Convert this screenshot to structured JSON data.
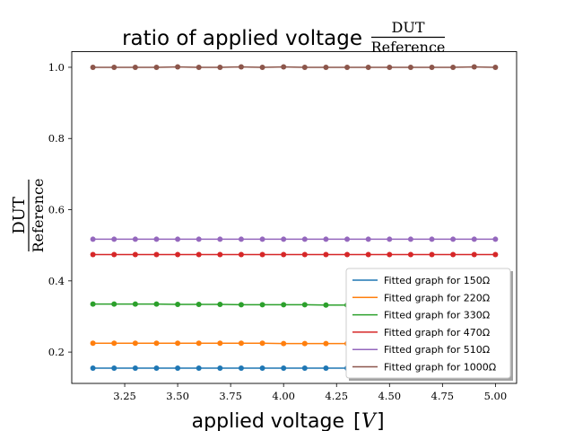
{
  "chart_data": {
    "type": "line",
    "title": "ratio of applied voltage",
    "title_fraction": {
      "numerator": "DUT",
      "denominator": "Reference"
    },
    "xlabel": "applied voltage",
    "xlabel_unit": "V",
    "ylabel_fraction": {
      "numerator": "DUT",
      "denominator": "Reference"
    },
    "xlim": [
      3.0,
      5.1
    ],
    "ylim": [
      0.112,
      1.044
    ],
    "x_ticks": [
      "3.25",
      "3.50",
      "3.75",
      "4.00",
      "4.25",
      "4.50",
      "4.75",
      "5.00"
    ],
    "y_ticks": [
      "0.2",
      "0.4",
      "0.6",
      "0.8",
      "1.0"
    ],
    "x": [
      3.1,
      3.2,
      3.3,
      3.4,
      3.5,
      3.6,
      3.7,
      3.8,
      3.9,
      4.0,
      4.1,
      4.2,
      4.3,
      4.4,
      4.5,
      4.6,
      4.7,
      4.8,
      4.9,
      5.0
    ],
    "legend_position": "lower-right",
    "series": [
      {
        "name": "Fitted graph for 150Ω",
        "color": "#1f77b4",
        "values": [
          0.155,
          0.155,
          0.155,
          0.155,
          0.155,
          0.155,
          0.155,
          0.155,
          0.155,
          0.155,
          0.155,
          0.155,
          0.155,
          0.155,
          0.155,
          0.155,
          0.155,
          0.155,
          0.155,
          0.155
        ]
      },
      {
        "name": "Fitted graph for 220Ω",
        "color": "#ff7f0e",
        "values": [
          0.225,
          0.225,
          0.225,
          0.225,
          0.225,
          0.225,
          0.225,
          0.225,
          0.225,
          0.224,
          0.224,
          0.224,
          0.224,
          0.224,
          0.224,
          0.224,
          0.224,
          0.224,
          0.224,
          0.224
        ]
      },
      {
        "name": "Fitted graph for 330Ω",
        "color": "#2ca02c",
        "values": [
          0.335,
          0.335,
          0.335,
          0.335,
          0.334,
          0.334,
          0.334,
          0.333,
          0.333,
          0.333,
          0.333,
          0.332,
          0.332,
          0.332,
          0.332,
          0.332,
          0.332,
          0.332,
          0.332,
          0.332
        ]
      },
      {
        "name": "Fitted graph for 470Ω",
        "color": "#d62728",
        "values": [
          0.474,
          0.474,
          0.474,
          0.474,
          0.474,
          0.474,
          0.474,
          0.474,
          0.474,
          0.474,
          0.474,
          0.474,
          0.474,
          0.474,
          0.474,
          0.474,
          0.474,
          0.474,
          0.474,
          0.474
        ]
      },
      {
        "name": "Fitted graph for 510Ω",
        "color": "#9467bd",
        "values": [
          0.517,
          0.517,
          0.517,
          0.517,
          0.517,
          0.517,
          0.517,
          0.517,
          0.517,
          0.517,
          0.517,
          0.517,
          0.517,
          0.517,
          0.517,
          0.517,
          0.517,
          0.517,
          0.517,
          0.517
        ]
      },
      {
        "name": "Fitted graph for 1000Ω",
        "color": "#8c564b",
        "values": [
          1.0,
          1.0,
          1.0,
          1.0,
          1.001,
          1.0,
          1.0,
          1.001,
          1.0,
          1.001,
          1.0,
          1.0,
          1.0,
          1.0,
          1.0,
          1.0,
          1.0,
          1.0,
          1.001,
          1.0
        ]
      }
    ]
  }
}
